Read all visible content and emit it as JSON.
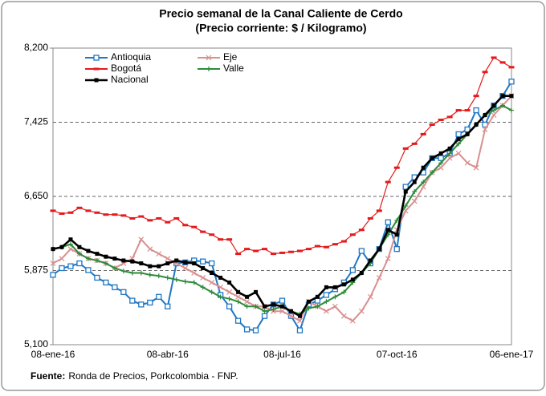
{
  "chart_data": {
    "type": "line",
    "title": "Precio semanal de la Canal Caliente de Cerdo",
    "subtitle": "(Precio corriente: $ / Kilogramo)",
    "source_label": "Fuente:",
    "source_text": "Ronda de Precios, Porkcolombia  - FNP.",
    "categories": [
      "08-ene-16",
      null,
      null,
      null,
      null,
      null,
      null,
      null,
      null,
      null,
      null,
      null,
      null,
      "08-abr-16",
      null,
      null,
      null,
      null,
      null,
      null,
      null,
      null,
      null,
      null,
      null,
      null,
      "08-jul-16",
      null,
      null,
      null,
      null,
      null,
      null,
      null,
      null,
      null,
      null,
      null,
      null,
      "07-oct-16",
      null,
      null,
      null,
      null,
      null,
      null,
      null,
      null,
      null,
      null,
      null,
      null,
      "06-ene-17"
    ],
    "ylim": [
      5100,
      8200
    ],
    "yticks": [
      {
        "value": 5100,
        "label": "5,100"
      },
      {
        "value": 5875,
        "label": "5,875"
      },
      {
        "value": 6650,
        "label": "6,650"
      },
      {
        "value": 7425,
        "label": "7,425"
      },
      {
        "value": 8200,
        "label": "8,200"
      }
    ],
    "grid": true,
    "legend": "top-left",
    "series": [
      {
        "name": "Antioquia",
        "color": "#1f77c4",
        "marker": "open-square",
        "values": [
          5830,
          5900,
          5920,
          5950,
          5880,
          5800,
          5750,
          5700,
          5650,
          5560,
          5520,
          5540,
          5600,
          5500,
          5950,
          5960,
          5980,
          5970,
          5950,
          5620,
          5500,
          5350,
          5260,
          5250,
          5400,
          5520,
          5560,
          5400,
          5250,
          5520,
          5560,
          5620,
          5680,
          5750,
          5880,
          6080,
          5950,
          6100,
          6380,
          6100,
          6750,
          6850,
          6900,
          7050,
          7050,
          7100,
          7300,
          7350,
          7550,
          7400,
          7600,
          7700,
          7850
        ]
      },
      {
        "name": "Eje",
        "color": "#d98f8f",
        "marker": "x",
        "values": [
          5950,
          6000,
          6100,
          6050,
          6000,
          5980,
          5950,
          5900,
          5950,
          6000,
          6200,
          6100,
          6050,
          6000,
          5950,
          5900,
          5850,
          5800,
          5750,
          5700,
          5650,
          5600,
          5550,
          5500,
          5500,
          5450,
          5450,
          5400,
          5350,
          5550,
          5500,
          5450,
          5500,
          5400,
          5350,
          5450,
          5600,
          5800,
          6000,
          6300,
          6500,
          6600,
          6750,
          6900,
          6950,
          7050,
          7100,
          7000,
          6950,
          7350,
          7500,
          7600,
          7700
        ]
      },
      {
        "name": "Bogotá",
        "color": "#e41a1c",
        "marker": "dash",
        "values": [
          6500,
          6470,
          6480,
          6530,
          6500,
          6480,
          6460,
          6460,
          6450,
          6420,
          6440,
          6400,
          6420,
          6380,
          6420,
          6350,
          6330,
          6280,
          6250,
          6200,
          6200,
          6050,
          6100,
          6080,
          6100,
          6050,
          6060,
          6070,
          6080,
          6100,
          6130,
          6120,
          6150,
          6180,
          6250,
          6300,
          6420,
          6500,
          6800,
          6950,
          7150,
          7200,
          7300,
          7400,
          7450,
          7480,
          7550,
          7550,
          7700,
          7950,
          8100,
          8050,
          8000
        ]
      },
      {
        "name": "Valle",
        "color": "#2e8b3a",
        "marker": "plus",
        "values": [
          6100,
          6120,
          6150,
          6050,
          6000,
          5980,
          5950,
          5900,
          5870,
          5850,
          5850,
          5830,
          5820,
          5800,
          5780,
          5760,
          5750,
          5700,
          5650,
          5600,
          5580,
          5550,
          5500,
          5500,
          5450,
          5470,
          5500,
          5450,
          5420,
          5480,
          5500,
          5550,
          5600,
          5650,
          5750,
          5850,
          5950,
          6100,
          6250,
          6400,
          6550,
          6700,
          6800,
          6900,
          7000,
          7100,
          7200,
          7300,
          7400,
          7500,
          7550,
          7600,
          7550
        ]
      },
      {
        "name": "Nacional",
        "color": "#000000",
        "marker": "square",
        "values": [
          6100,
          6120,
          6200,
          6120,
          6080,
          6050,
          6020,
          6000,
          5980,
          5970,
          5950,
          5920,
          5920,
          5950,
          5980,
          5960,
          5950,
          5900,
          5850,
          5800,
          5750,
          5650,
          5600,
          5650,
          5500,
          5520,
          5500,
          5450,
          5400,
          5550,
          5600,
          5700,
          5700,
          5730,
          5780,
          5850,
          5980,
          6100,
          6300,
          6250,
          6700,
          6800,
          6950,
          7050,
          7100,
          7150,
          7250,
          7300,
          7400,
          7500,
          7600,
          7700,
          7700
        ]
      }
    ]
  }
}
